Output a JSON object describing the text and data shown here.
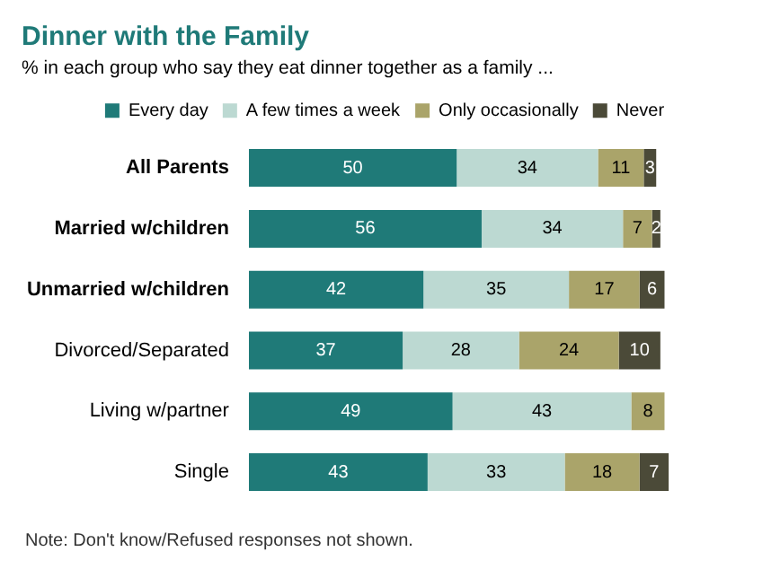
{
  "chart_data": {
    "type": "bar",
    "orientation": "horizontal",
    "stacked": true,
    "title": "Dinner with the Family",
    "subtitle": "% in each group who say they eat dinner together as a family ...",
    "categories": [
      "All Parents",
      "Married w/children",
      "Unmarried w/children",
      "Divorced/Separated",
      "Living w/partner",
      "Single"
    ],
    "series": [
      {
        "name": "Every day",
        "color": "#1f7a78",
        "values": [
          50,
          56,
          42,
          37,
          49,
          43
        ]
      },
      {
        "name": "A few times a week",
        "color": "#bcd9d2",
        "values": [
          34,
          34,
          35,
          28,
          43,
          33
        ]
      },
      {
        "name": "Only occasionally",
        "color": "#aaa46a",
        "values": [
          11,
          7,
          17,
          24,
          8,
          18
        ]
      },
      {
        "name": "Never",
        "color": "#4b4a38",
        "values": [
          3,
          2,
          6,
          10,
          null,
          7
        ]
      }
    ],
    "data_labels": true,
    "tick_labels": "y",
    "grid": false,
    "legend": "top",
    "annotations": [
      "Note: Don't know/Refused responses not shown."
    ]
  }
}
